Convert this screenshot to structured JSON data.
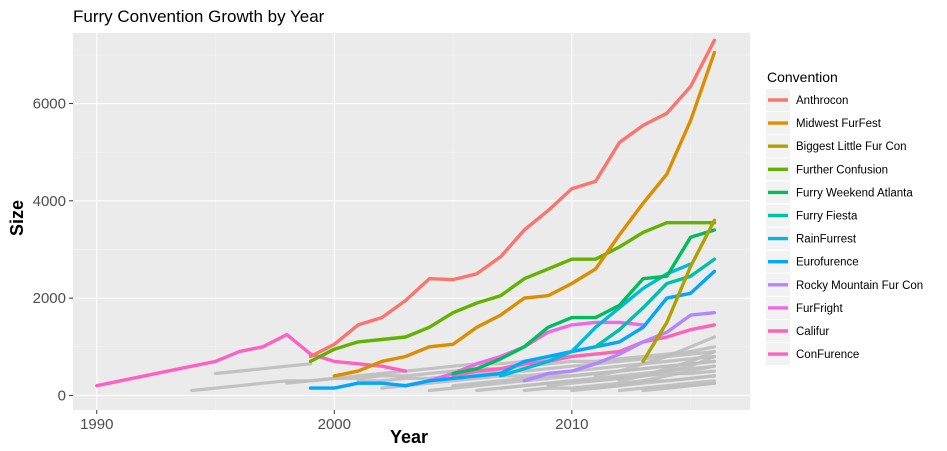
{
  "chart_data": {
    "type": "line",
    "title": "Furry Convention Growth by Year",
    "xlabel": "Year",
    "ylabel": "Size",
    "xlim": [
      1989,
      2017.5
    ],
    "ylim": [
      -300,
      7450
    ],
    "x_ticks": [
      1990,
      2000,
      2010
    ],
    "y_ticks": [
      0,
      2000,
      4000,
      6000
    ],
    "grid": true,
    "legend_position": "right",
    "legend_title": "Convention",
    "series": [
      {
        "name": "Anthrocon",
        "color": "#F8766D",
        "x": [
          1999,
          2000,
          2001,
          2002,
          2003,
          2004,
          2005,
          2006,
          2007,
          2008,
          2009,
          2010,
          2011,
          2012,
          2013,
          2014,
          2015,
          2016
        ],
        "y": [
          800,
          1050,
          1450,
          1600,
          1950,
          2400,
          2380,
          2500,
          2850,
          3400,
          3800,
          4250,
          4400,
          5200,
          5550,
          5800,
          6350,
          7300
        ]
      },
      {
        "name": "Midwest FurFest",
        "color": "#DB8E00",
        "x": [
          2000,
          2001,
          2002,
          2003,
          2004,
          2005,
          2006,
          2007,
          2008,
          2009,
          2010,
          2011,
          2012,
          2013,
          2014,
          2015,
          2016
        ],
        "y": [
          400,
          500,
          700,
          800,
          1000,
          1050,
          1400,
          1650,
          2000,
          2050,
          2300,
          2600,
          3300,
          3950,
          4550,
          5650,
          7050
        ]
      },
      {
        "name": "Biggest Little Fur Con",
        "color": "#AEA200",
        "x": [
          2013,
          2014,
          2015,
          2016
        ],
        "y": [
          700,
          1500,
          2650,
          3600
        ]
      },
      {
        "name": "Further Confusion",
        "color": "#64B200",
        "x": [
          1999,
          2000,
          2001,
          2002,
          2003,
          2004,
          2005,
          2006,
          2007,
          2008,
          2009,
          2010,
          2011,
          2012,
          2013,
          2014,
          2015,
          2016
        ],
        "y": [
          700,
          950,
          1100,
          1150,
          1200,
          1400,
          1700,
          1900,
          2050,
          2400,
          2600,
          2800,
          2800,
          3050,
          3350,
          3550,
          3550,
          3550
        ]
      },
      {
        "name": "Furry Weekend Atlanta",
        "color": "#00BD5C",
        "x": [
          2005,
          2006,
          2007,
          2008,
          2009,
          2010,
          2011,
          2012,
          2013,
          2014,
          2015,
          2016
        ],
        "y": [
          450,
          550,
          750,
          1000,
          1400,
          1600,
          1600,
          1850,
          2400,
          2450,
          3250,
          3400
        ]
      },
      {
        "name": "Furry Fiesta",
        "color": "#00C1A7",
        "x": [
          2011,
          2012,
          2013,
          2014,
          2015,
          2016
        ],
        "y": [
          1000,
          1350,
          1800,
          2300,
          2450,
          2800
        ]
      },
      {
        "name": "RainFurrest",
        "color": "#00BADE",
        "x": [
          2007,
          2008,
          2009,
          2010,
          2011,
          2012,
          2013,
          2014,
          2015
        ],
        "y": [
          400,
          550,
          700,
          900,
          1400,
          1800,
          2200,
          2500,
          2700
        ]
      },
      {
        "name": "Eurofurence",
        "color": "#00A6FF",
        "x": [
          1999,
          2000,
          2001,
          2002,
          2003,
          2004,
          2005,
          2006,
          2007,
          2008,
          2009,
          2010,
          2011,
          2012,
          2013,
          2014,
          2015,
          2016
        ],
        "y": [
          150,
          150,
          250,
          250,
          200,
          300,
          350,
          400,
          450,
          700,
          800,
          900,
          1000,
          1100,
          1400,
          2000,
          2100,
          2550
        ]
      },
      {
        "name": "Rocky Mountain Fur Con",
        "color": "#B385FF",
        "x": [
          2008,
          2009,
          2010,
          2011,
          2012,
          2013,
          2014,
          2015,
          2016
        ],
        "y": [
          300,
          450,
          500,
          650,
          850,
          1100,
          1300,
          1650,
          1700
        ]
      },
      {
        "name": "FurFright",
        "color": "#EF67EB",
        "x": [
          2003,
          2004,
          2005,
          2006,
          2007,
          2008,
          2009,
          2010,
          2011,
          2012,
          2013
        ],
        "y": [
          200,
          300,
          450,
          650,
          800,
          1000,
          1300,
          1450,
          1500,
          1500,
          1450
        ]
      },
      {
        "name": "Califur",
        "color": "#FF63B6",
        "x": [
          2005,
          2006,
          2007,
          2008,
          2009,
          2010,
          2011,
          2012,
          2013,
          2014,
          2015,
          2016
        ],
        "y": [
          400,
          500,
          550,
          650,
          700,
          800,
          850,
          900,
          1100,
          1200,
          1350,
          1450
        ]
      },
      {
        "name": "ConFurence",
        "color": "#FF61C3",
        "x": [
          1990,
          1991,
          1992,
          1993,
          1994,
          1995,
          1996,
          1997,
          1998,
          1999,
          2000,
          2001,
          2002,
          2003
        ],
        "y": [
          200,
          300,
          400,
          500,
          600,
          700,
          900,
          1000,
          1250,
          850,
          700,
          650,
          600,
          500
        ]
      }
    ],
    "other_series": [
      {
        "color": "#BEBEBE",
        "x": [
          1994,
          1995,
          1996,
          1997,
          1998,
          1999,
          2000,
          2001,
          2002,
          2003,
          2004,
          2005,
          2006,
          2007,
          2008,
          2009,
          2010,
          2011,
          2012,
          2013,
          2014,
          2015,
          2016
        ],
        "y": [
          100,
          150,
          200,
          250,
          300,
          300,
          350,
          350,
          400,
          400,
          450,
          500,
          550,
          550,
          600,
          650,
          700,
          700,
          750,
          800,
          850,
          900,
          1000
        ]
      },
      {
        "color": "#BEBEBE",
        "x": [
          1995,
          1996,
          1997,
          1998,
          1999
        ],
        "y": [
          450,
          500,
          550,
          600,
          650
        ]
      },
      {
        "color": "#BEBEBE",
        "x": [
          1998,
          1999,
          2000,
          2001,
          2002,
          2003,
          2004,
          2005,
          2006,
          2007,
          2008,
          2009,
          2010
        ],
        "y": [
          250,
          300,
          350,
          400,
          450,
          500,
          550,
          600,
          650,
          650,
          700,
          750,
          800
        ]
      },
      {
        "color": "#BEBEBE",
        "x": [
          2001,
          2002,
          2003,
          2004,
          2005,
          2006,
          2007,
          2008,
          2009,
          2010,
          2011,
          2012,
          2013,
          2014,
          2015,
          2016
        ],
        "y": [
          300,
          300,
          350,
          350,
          400,
          450,
          500,
          500,
          550,
          600,
          650,
          700,
          750,
          800,
          850,
          900
        ]
      },
      {
        "color": "#BEBEBE",
        "x": [
          2002,
          2003,
          2004,
          2005,
          2006,
          2007,
          2008,
          2009,
          2010,
          2011,
          2012,
          2013,
          2014,
          2015,
          2016
        ],
        "y": [
          150,
          200,
          250,
          300,
          350,
          400,
          400,
          450,
          500,
          550,
          600,
          650,
          700,
          750,
          800
        ]
      },
      {
        "color": "#BEBEBE",
        "x": [
          2004,
          2005,
          2006,
          2007,
          2008,
          2009,
          2010,
          2011,
          2012,
          2013,
          2014,
          2015,
          2016
        ],
        "y": [
          100,
          150,
          200,
          250,
          300,
          350,
          400,
          450,
          500,
          550,
          600,
          650,
          700
        ]
      },
      {
        "color": "#BEBEBE",
        "x": [
          2005,
          2006,
          2007,
          2008,
          2009,
          2010,
          2011,
          2012,
          2013,
          2014,
          2015,
          2016
        ],
        "y": [
          200,
          250,
          300,
          350,
          400,
          400,
          450,
          500,
          550,
          600,
          650,
          700
        ]
      },
      {
        "color": "#BEBEBE",
        "x": [
          2006,
          2007,
          2008,
          2009,
          2010,
          2011,
          2012,
          2013,
          2014,
          2015,
          2016
        ],
        "y": [
          100,
          150,
          200,
          250,
          300,
          350,
          400,
          450,
          500,
          550,
          600
        ]
      },
      {
        "color": "#BEBEBE",
        "x": [
          2007,
          2008,
          2009,
          2010,
          2011,
          2012,
          2013,
          2014,
          2015,
          2016
        ],
        "y": [
          150,
          200,
          250,
          300,
          300,
          350,
          400,
          450,
          450,
          500
        ]
      },
      {
        "color": "#BEBEBE",
        "x": [
          2008,
          2009,
          2010,
          2011,
          2012,
          2013,
          2014,
          2015,
          2016
        ],
        "y": [
          100,
          150,
          150,
          200,
          250,
          300,
          300,
          350,
          400
        ]
      },
      {
        "color": "#BEBEBE",
        "x": [
          2009,
          2010,
          2011,
          2012,
          2013,
          2014,
          2015,
          2016
        ],
        "y": [
          200,
          250,
          300,
          350,
          400,
          500,
          600,
          800
        ]
      },
      {
        "color": "#BEBEBE",
        "x": [
          2010,
          2011,
          2012,
          2013,
          2014,
          2015,
          2016
        ],
        "y": [
          100,
          150,
          200,
          250,
          300,
          350,
          400
        ]
      },
      {
        "color": "#BEBEBE",
        "x": [
          2011,
          2012,
          2013,
          2014,
          2015,
          2016
        ],
        "y": [
          150,
          200,
          300,
          400,
          500,
          600
        ]
      },
      {
        "color": "#BEBEBE",
        "x": [
          2012,
          2013,
          2014,
          2015,
          2016
        ],
        "y": [
          100,
          150,
          200,
          250,
          300
        ]
      },
      {
        "color": "#BEBEBE",
        "x": [
          2013,
          2014,
          2015,
          2016
        ],
        "y": [
          100,
          150,
          200,
          250
        ]
      },
      {
        "color": "#BEBEBE",
        "x": [
          2014,
          2015,
          2016
        ],
        "y": [
          150,
          200,
          250
        ]
      },
      {
        "color": "#BEBEBE",
        "x": [
          2012,
          2013,
          2014,
          2015,
          2016
        ],
        "y": [
          300,
          400,
          550,
          700,
          900
        ]
      },
      {
        "color": "#BEBEBE",
        "x": [
          2011,
          2012,
          2013,
          2014,
          2015,
          2016
        ],
        "y": [
          400,
          500,
          650,
          800,
          1000,
          1200
        ]
      }
    ]
  }
}
